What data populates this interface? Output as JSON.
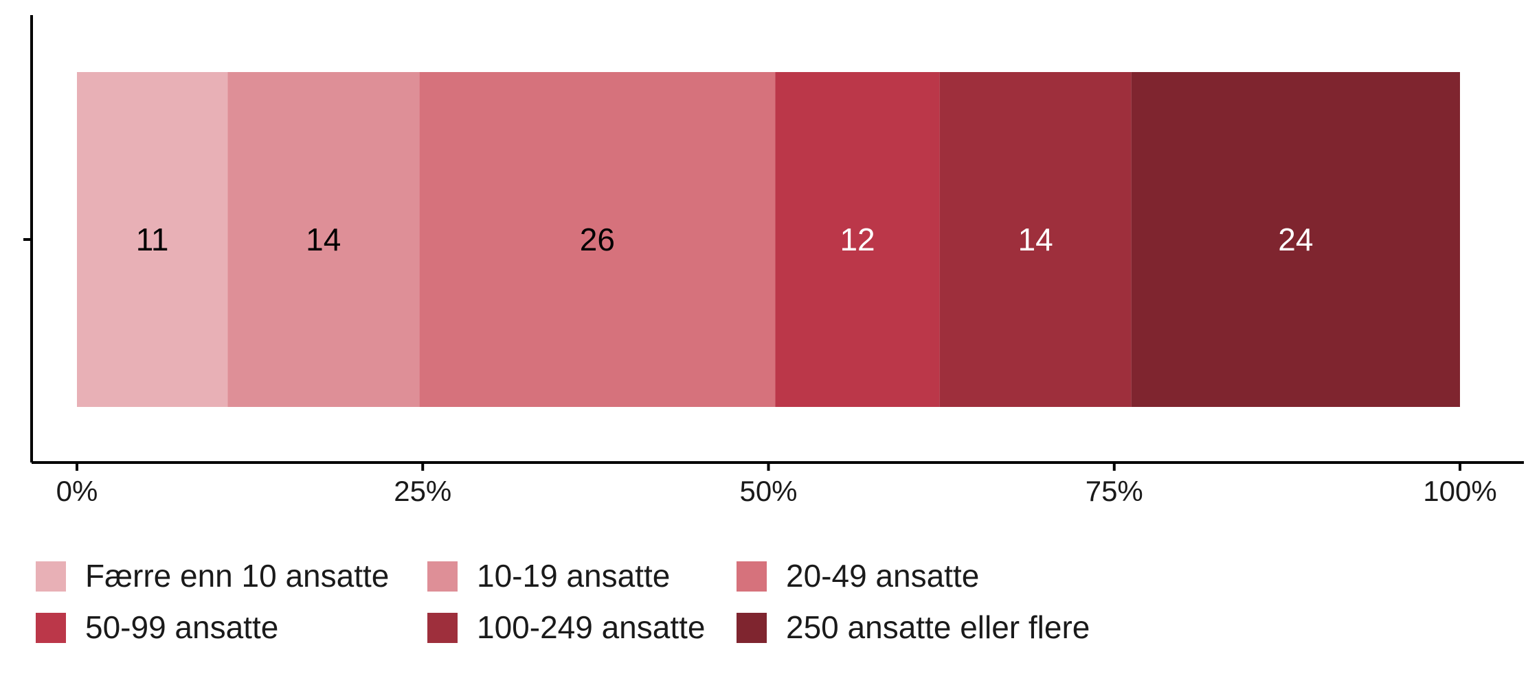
{
  "chart_data": {
    "type": "bar",
    "orientation": "horizontal",
    "stacked": true,
    "title": "",
    "xlabel": "",
    "ylabel": "",
    "xlim": [
      0,
      100
    ],
    "x_ticks": [
      "0%",
      "25%",
      "50%",
      "75%",
      "100%"
    ],
    "x_tick_values": [
      0,
      25,
      50,
      75,
      100
    ],
    "grid": false,
    "legend_position": "bottom",
    "categories": [
      ""
    ],
    "series": [
      {
        "name": "Færre enn 10 ansatte",
        "values": [
          11
        ],
        "label": "11",
        "color": "#e8b0b6",
        "label_color": "#000000"
      },
      {
        "name": "10-19 ansatte",
        "values": [
          14
        ],
        "label": "14",
        "color": "#de8f97",
        "label_color": "#000000"
      },
      {
        "name": "20-49 ansatte",
        "values": [
          26
        ],
        "label": "26",
        "color": "#d6727c",
        "label_color": "#000000"
      },
      {
        "name": "50-99 ansatte",
        "values": [
          12
        ],
        "label": "12",
        "color": "#bb3749",
        "label_color": "#ffffff"
      },
      {
        "name": "100-249 ansatte",
        "values": [
          14
        ],
        "label": "14",
        "color": "#9e2f3c",
        "label_color": "#ffffff"
      },
      {
        "name": "250 ansatte eller flere",
        "values": [
          24
        ],
        "label": "24",
        "color": "#7f252f",
        "label_color": "#ffffff"
      }
    ]
  }
}
